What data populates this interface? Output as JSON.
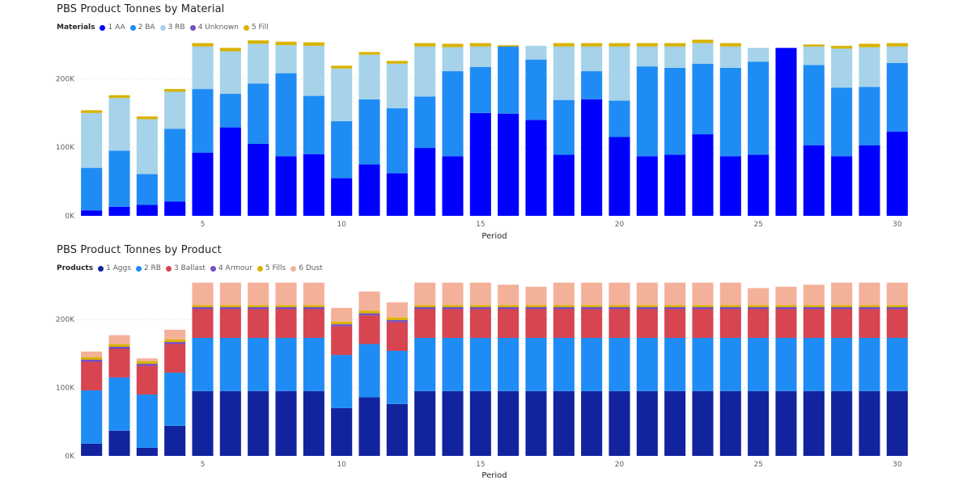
{
  "chart_data": [
    {
      "type": "bar",
      "stacked": true,
      "title": "PBS Product Tonnes by Material",
      "legend_title": "Materials",
      "legend_position": "top-left",
      "xlabel": "Period",
      "ylabel": "",
      "x": [
        1,
        2,
        3,
        4,
        5,
        6,
        7,
        8,
        9,
        10,
        11,
        12,
        13,
        14,
        15,
        16,
        17,
        18,
        19,
        20,
        21,
        22,
        23,
        24,
        25,
        26,
        27,
        28,
        29,
        30
      ],
      "x_tick_labels": [
        "5",
        "10",
        "15",
        "20",
        "25",
        "30"
      ],
      "x_tick_values": [
        5,
        10,
        15,
        20,
        25,
        30
      ],
      "y_tick_labels": [
        "0K",
        "100K",
        "200K"
      ],
      "y_tick_values": [
        0,
        100000,
        200000
      ],
      "ylim": [
        0,
        250000
      ],
      "grid": "horizontal-dotted",
      "series": [
        {
          "name": "1 AA",
          "color": "#0000ff",
          "values": [
            8000,
            13000,
            16000,
            21000,
            92000,
            129000,
            105000,
            87000,
            90000,
            55000,
            75000,
            62000,
            99000,
            87000,
            150000,
            149000,
            140000,
            89000,
            170000,
            115000,
            87000,
            89000,
            119000,
            87000,
            89000,
            245000,
            103000,
            87000,
            103000,
            123000
          ]
        },
        {
          "name": "2 BA",
          "color": "#1f8cf5",
          "values": [
            62000,
            82000,
            45000,
            106000,
            93000,
            49000,
            88000,
            121000,
            85000,
            83000,
            95000,
            95000,
            75000,
            124000,
            67000,
            98000,
            88000,
            80000,
            41000,
            53000,
            131000,
            127000,
            103000,
            129000,
            136000,
            0,
            117000,
            100000,
            85000,
            100000
          ]
        },
        {
          "name": "3 RB",
          "color": "#a6d3ea",
          "values": [
            80000,
            77000,
            80000,
            54000,
            62000,
            62000,
            58000,
            41000,
            73000,
            77000,
            65000,
            65000,
            73000,
            35000,
            30000,
            0,
            20000,
            78000,
            36000,
            79000,
            29000,
            31000,
            30000,
            31000,
            20000,
            0,
            27000,
            57000,
            58000,
            24000
          ]
        },
        {
          "name": "4 Unknown",
          "color": "#744ec2",
          "values": [
            0,
            0,
            0,
            0,
            0,
            0,
            0,
            0,
            0,
            0,
            0,
            0,
            0,
            0,
            0,
            0,
            0,
            0,
            0,
            0,
            0,
            0,
            0,
            0,
            0,
            0,
            0,
            0,
            0,
            0
          ]
        },
        {
          "name": "5 Fill",
          "color": "#d9b300",
          "values": [
            4000,
            4000,
            4000,
            4000,
            5000,
            5000,
            5000,
            5000,
            5000,
            4000,
            4000,
            4000,
            5000,
            5000,
            5000,
            2000,
            0,
            5000,
            5000,
            5000,
            5000,
            5000,
            5000,
            5000,
            0,
            0,
            3000,
            4000,
            5000,
            5000
          ]
        }
      ]
    },
    {
      "type": "bar",
      "stacked": true,
      "title": "PBS Product Tonnes by Product",
      "legend_title": "Products",
      "legend_position": "top-left",
      "xlabel": "Period",
      "ylabel": "",
      "x": [
        1,
        2,
        3,
        4,
        5,
        6,
        7,
        8,
        9,
        10,
        11,
        12,
        13,
        14,
        15,
        16,
        17,
        18,
        19,
        20,
        21,
        22,
        23,
        24,
        25,
        26,
        27,
        28,
        29,
        30
      ],
      "x_tick_labels": [
        "5",
        "10",
        "15",
        "20",
        "25",
        "30"
      ],
      "x_tick_values": [
        5,
        10,
        15,
        20,
        25,
        30
      ],
      "y_tick_labels": [
        "0K",
        "100K",
        "200K"
      ],
      "y_tick_values": [
        0,
        100000,
        200000
      ],
      "ylim": [
        0,
        250000
      ],
      "grid": "horizontal-dotted",
      "series": [
        {
          "name": "1 Aggs",
          "color": "#12239e",
          "values": [
            18000,
            37000,
            12000,
            44000,
            95000,
            95000,
            95000,
            95000,
            95000,
            70000,
            86000,
            76000,
            95000,
            95000,
            95000,
            95000,
            95000,
            95000,
            95000,
            95000,
            95000,
            95000,
            95000,
            95000,
            95000,
            95000,
            95000,
            95000,
            95000,
            95000
          ]
        },
        {
          "name": "2 RB",
          "color": "#1f8cf5",
          "values": [
            78000,
            78000,
            78000,
            78000,
            78000,
            78000,
            78000,
            78000,
            78000,
            78000,
            78000,
            78000,
            78000,
            78000,
            78000,
            78000,
            78000,
            78000,
            78000,
            78000,
            78000,
            78000,
            78000,
            78000,
            78000,
            78000,
            78000,
            78000,
            78000,
            78000
          ]
        },
        {
          "name": "3 Ballast",
          "color": "#d64550",
          "values": [
            42000,
            42000,
            42000,
            42000,
            42000,
            42000,
            42000,
            42000,
            42000,
            42000,
            42000,
            42000,
            42000,
            42000,
            42000,
            42000,
            42000,
            42000,
            42000,
            42000,
            42000,
            42000,
            42000,
            42000,
            42000,
            42000,
            42000,
            42000,
            42000,
            42000
          ]
        },
        {
          "name": "4 Armour",
          "color": "#744ec2",
          "values": [
            3000,
            3000,
            3000,
            3000,
            3000,
            3000,
            3000,
            3000,
            3000,
            3000,
            3000,
            3000,
            3000,
            3000,
            3000,
            3000,
            3000,
            3000,
            3000,
            3000,
            3000,
            3000,
            3000,
            3000,
            3000,
            3000,
            3000,
            3000,
            3000,
            3000
          ]
        },
        {
          "name": "5 Fills",
          "color": "#d9b300",
          "values": [
            4000,
            4000,
            4000,
            4000,
            3000,
            3000,
            3000,
            3000,
            3000,
            4000,
            4000,
            4000,
            3000,
            3000,
            3000,
            3000,
            3000,
            3000,
            3000,
            3000,
            3000,
            3000,
            3000,
            3000,
            3000,
            3000,
            3000,
            3000,
            3000,
            3000
          ]
        },
        {
          "name": "6 Dust",
          "color": "#f4b19a",
          "values": [
            8000,
            13000,
            4000,
            14000,
            33000,
            33000,
            33000,
            33000,
            33000,
            20000,
            28000,
            22000,
            33000,
            33000,
            33000,
            30000,
            27000,
            33000,
            33000,
            33000,
            33000,
            33000,
            33000,
            33000,
            25000,
            27000,
            30000,
            33000,
            33000,
            33000
          ]
        }
      ]
    }
  ]
}
